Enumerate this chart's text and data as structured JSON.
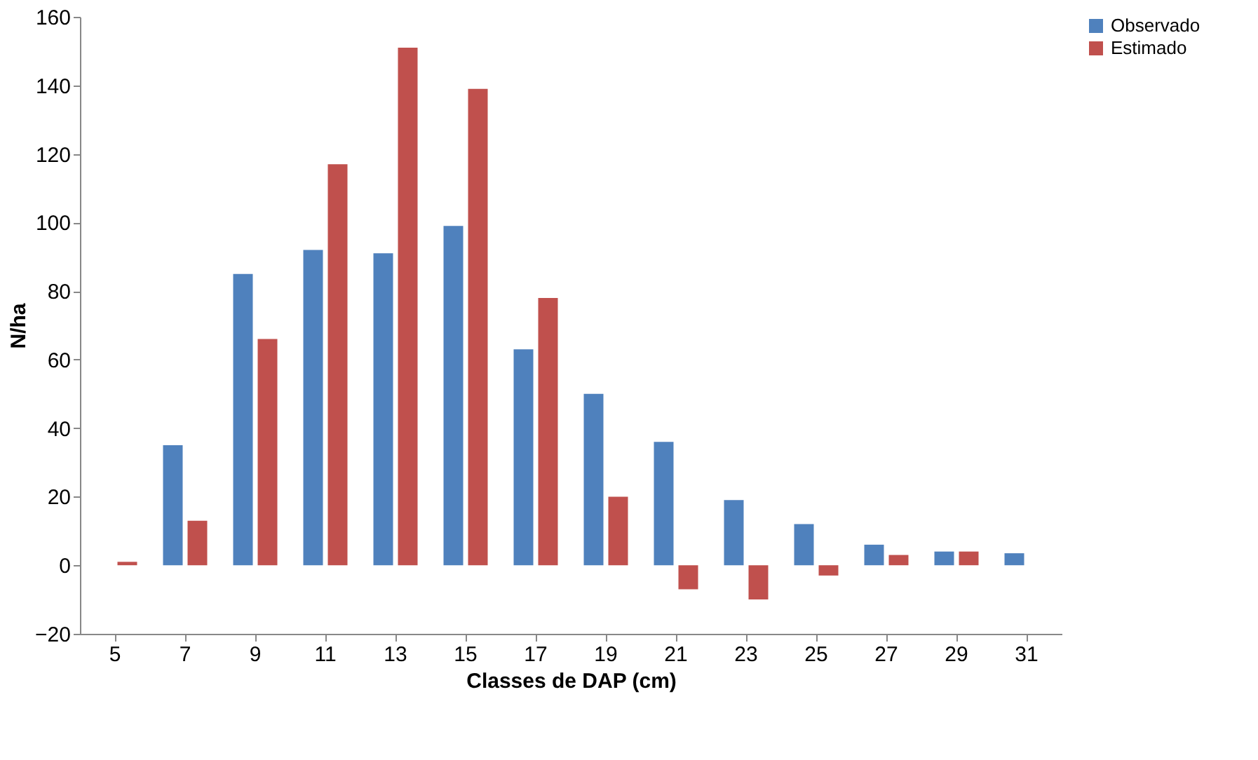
{
  "chart_data": {
    "type": "bar",
    "xlabel": "Classes de DAP (cm)",
    "ylabel": "N/ha",
    "categories": [
      "5",
      "7",
      "9",
      "11",
      "13",
      "15",
      "17",
      "19",
      "21",
      "23",
      "25",
      "27",
      "29",
      "31"
    ],
    "series": [
      {
        "name": "Observado",
        "color": "#4f81bd",
        "values": [
          0,
          35,
          85,
          92,
          91,
          99,
          63,
          50,
          36,
          19,
          12,
          6,
          4,
          3.5
        ]
      },
      {
        "name": "Estimado",
        "color": "#c0504d",
        "values": [
          1,
          13,
          66,
          117,
          151,
          139,
          78,
          20,
          -7,
          -10,
          -3,
          3,
          4,
          null
        ]
      }
    ],
    "ylim": [
      -20,
      160
    ],
    "yticks": [
      -20,
      0,
      20,
      40,
      60,
      80,
      100,
      120,
      140,
      160
    ],
    "grid": false,
    "legend": "right"
  }
}
